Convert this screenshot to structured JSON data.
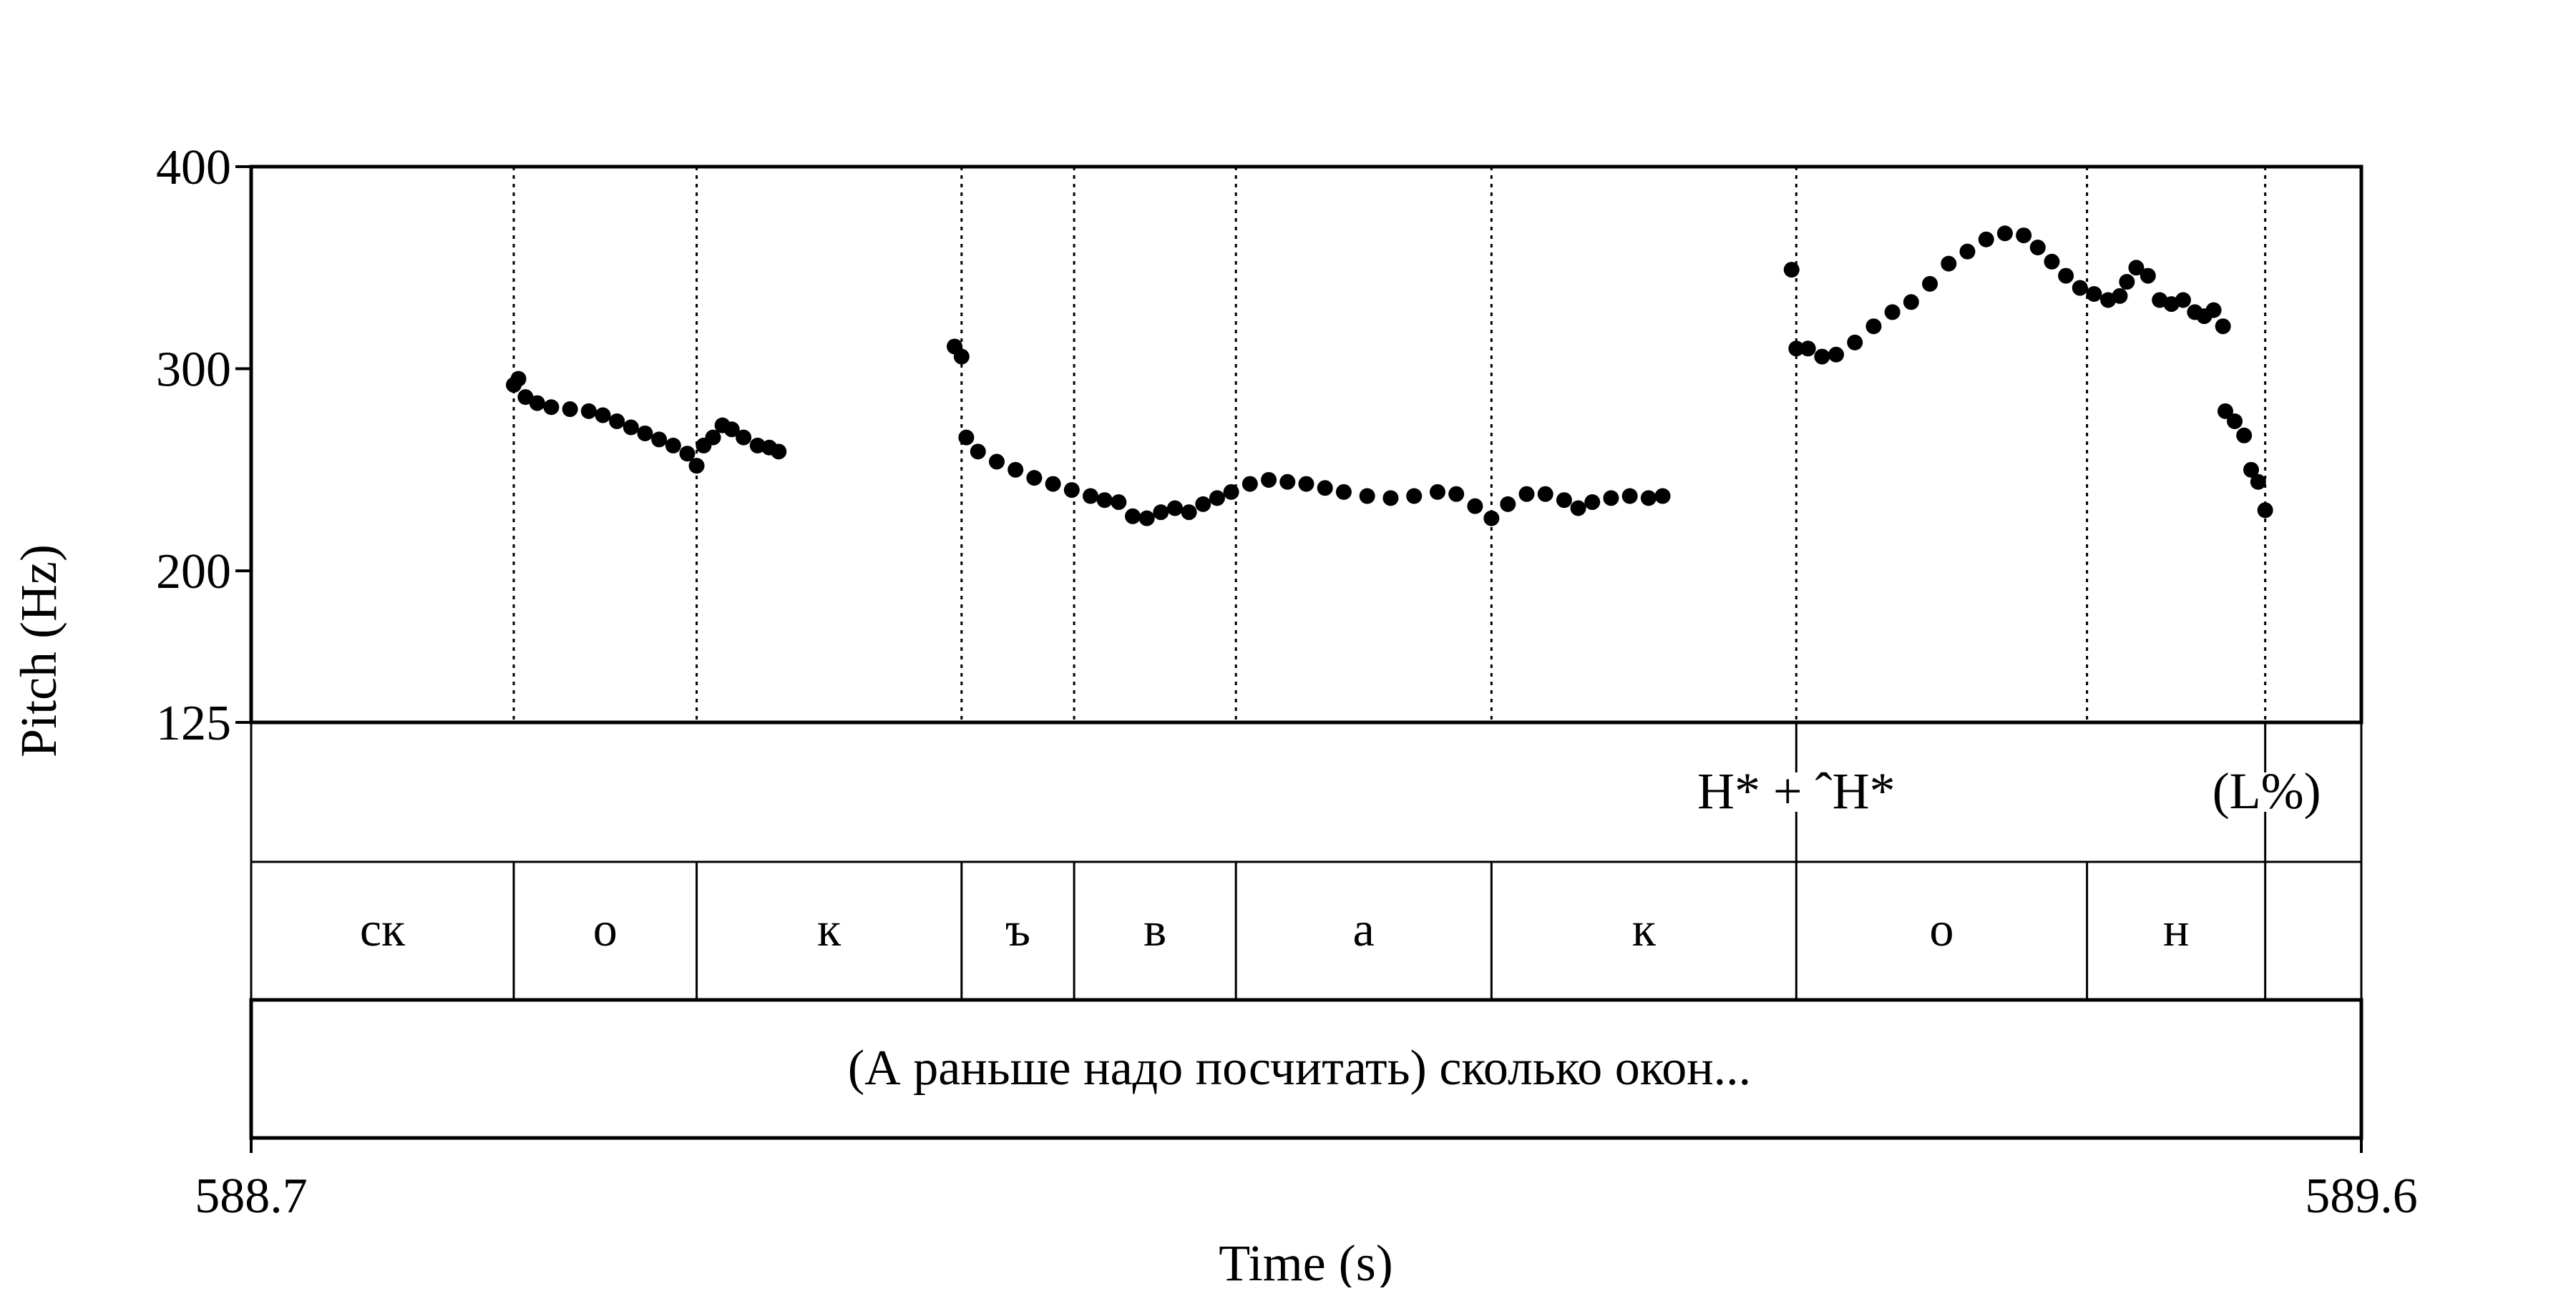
{
  "chart_data": {
    "type": "scatter",
    "title": "",
    "xlabel": "Time (s)",
    "ylabel": "Pitch (Hz)",
    "xlim": [
      588.7,
      589.6
    ],
    "ylim": [
      125,
      400
    ],
    "x_ticks": [
      "588.7",
      "589.6"
    ],
    "y_ticks": [
      {
        "value": 400,
        "label": "400"
      },
      {
        "value": 300,
        "label": "300"
      },
      {
        "value": 200,
        "label": "200"
      },
      {
        "value": 125,
        "label": "125"
      }
    ],
    "segments": [
      {
        "label": "ск",
        "start": 588.7,
        "end": 588.812
      },
      {
        "label": "о",
        "start": 588.812,
        "end": 588.89
      },
      {
        "label": "к",
        "start": 588.89,
        "end": 589.003
      },
      {
        "label": "ъ",
        "start": 589.003,
        "end": 589.051
      },
      {
        "label": "в",
        "start": 589.051,
        "end": 589.12
      },
      {
        "label": "а",
        "start": 589.12,
        "end": 589.229
      },
      {
        "label": "к",
        "start": 589.229,
        "end": 589.359
      },
      {
        "label": "о",
        "start": 589.359,
        "end": 589.483
      },
      {
        "label": "н",
        "start": 589.483,
        "end": 589.559
      },
      {
        "label": "",
        "start": 589.559,
        "end": 589.6
      }
    ],
    "tones": [
      {
        "label": "H* + ˆH*",
        "time": 589.359
      },
      {
        "label": "(L%)",
        "time": 589.559
      }
    ],
    "gloss": "(А раньше надо посчитать) сколько окон...",
    "series": [
      {
        "points": [
          [
            588.812,
            292
          ],
          [
            588.814,
            295
          ],
          [
            588.817,
            286
          ],
          [
            588.822,
            283
          ],
          [
            588.828,
            281
          ],
          [
            588.836,
            280
          ],
          [
            588.844,
            279
          ],
          [
            588.85,
            277
          ],
          [
            588.856,
            274
          ],
          [
            588.862,
            271
          ],
          [
            588.868,
            268
          ],
          [
            588.874,
            265
          ],
          [
            588.88,
            262
          ],
          [
            588.886,
            258
          ],
          [
            588.89,
            252
          ],
          [
            588.893,
            262
          ],
          [
            588.897,
            266
          ],
          [
            588.901,
            272
          ],
          [
            588.905,
            270
          ],
          [
            588.91,
            266
          ],
          [
            588.916,
            262
          ],
          [
            588.921,
            261
          ],
          [
            588.925,
            259
          ],
          [
            589.0,
            311
          ],
          [
            589.003,
            306
          ],
          [
            589.005,
            266
          ],
          [
            589.01,
            259
          ],
          [
            589.018,
            254
          ],
          [
            589.026,
            250
          ],
          [
            589.034,
            246
          ],
          [
            589.042,
            243
          ],
          [
            589.05,
            240
          ],
          [
            589.058,
            237
          ],
          [
            589.064,
            235
          ],
          [
            589.07,
            234
          ],
          [
            589.076,
            227
          ],
          [
            589.082,
            226
          ],
          [
            589.088,
            229
          ],
          [
            589.094,
            231
          ],
          [
            589.1,
            229
          ],
          [
            589.106,
            233
          ],
          [
            589.112,
            236
          ],
          [
            589.118,
            239
          ],
          [
            589.126,
            243
          ],
          [
            589.134,
            245
          ],
          [
            589.142,
            244
          ],
          [
            589.15,
            243
          ],
          [
            589.158,
            241
          ],
          [
            589.166,
            239
          ],
          [
            589.176,
            237
          ],
          [
            589.186,
            236
          ],
          [
            589.196,
            237
          ],
          [
            589.206,
            239
          ],
          [
            589.214,
            238
          ],
          [
            589.222,
            232
          ],
          [
            589.229,
            226
          ],
          [
            589.236,
            233
          ],
          [
            589.244,
            238
          ],
          [
            589.252,
            238
          ],
          [
            589.26,
            235
          ],
          [
            589.266,
            231
          ],
          [
            589.272,
            234
          ],
          [
            589.28,
            236
          ],
          [
            589.288,
            237
          ],
          [
            589.296,
            236
          ],
          [
            589.302,
            237
          ],
          [
            589.357,
            349
          ],
          [
            589.359,
            310
          ],
          [
            589.364,
            310
          ],
          [
            589.37,
            306
          ],
          [
            589.376,
            307
          ],
          [
            589.384,
            313
          ],
          [
            589.392,
            321
          ],
          [
            589.4,
            328
          ],
          [
            589.408,
            333
          ],
          [
            589.416,
            342
          ],
          [
            589.424,
            352
          ],
          [
            589.432,
            358
          ],
          [
            589.44,
            364
          ],
          [
            589.448,
            367
          ],
          [
            589.456,
            366
          ],
          [
            589.462,
            360
          ],
          [
            589.468,
            353
          ],
          [
            589.474,
            346
          ],
          [
            589.48,
            340
          ],
          [
            589.486,
            337
          ],
          [
            589.492,
            334
          ],
          [
            589.497,
            336
          ],
          [
            589.5,
            343
          ],
          [
            589.504,
            350
          ],
          [
            589.509,
            346
          ],
          [
            589.514,
            334
          ],
          [
            589.519,
            332
          ],
          [
            589.524,
            334
          ],
          [
            589.529,
            328
          ],
          [
            589.533,
            326
          ],
          [
            589.537,
            329
          ],
          [
            589.541,
            321
          ],
          [
            589.542,
            279
          ],
          [
            589.546,
            274
          ],
          [
            589.55,
            267
          ],
          [
            589.553,
            250
          ],
          [
            589.556,
            244
          ],
          [
            589.559,
            230
          ]
        ]
      }
    ]
  }
}
